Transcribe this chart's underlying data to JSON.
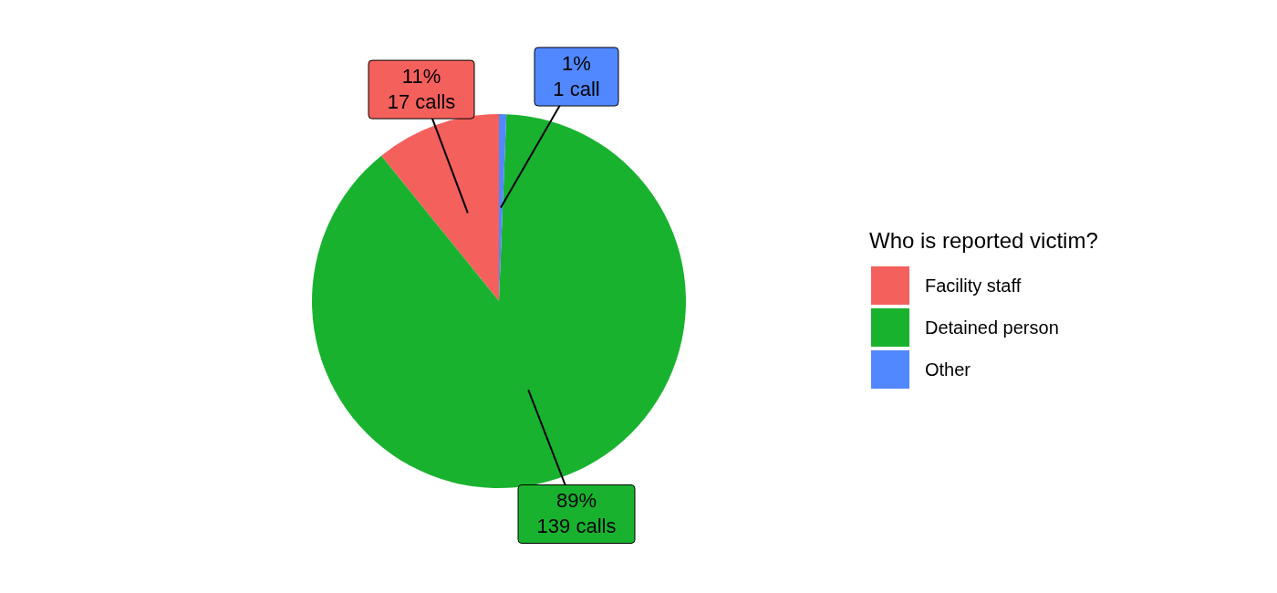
{
  "chart_data": {
    "type": "pie",
    "legend_title": "Who is reported victim?",
    "legend": "right",
    "categories": [
      "Facility staff",
      "Detained person",
      "Other"
    ],
    "values": [
      17,
      139,
      1
    ],
    "colors": [
      "#f4605c",
      "#19b22f",
      "#5288ff"
    ],
    "value_labels": [
      "11%\n17 calls",
      "89%\n139 calls",
      "1%\n1 call"
    ]
  }
}
